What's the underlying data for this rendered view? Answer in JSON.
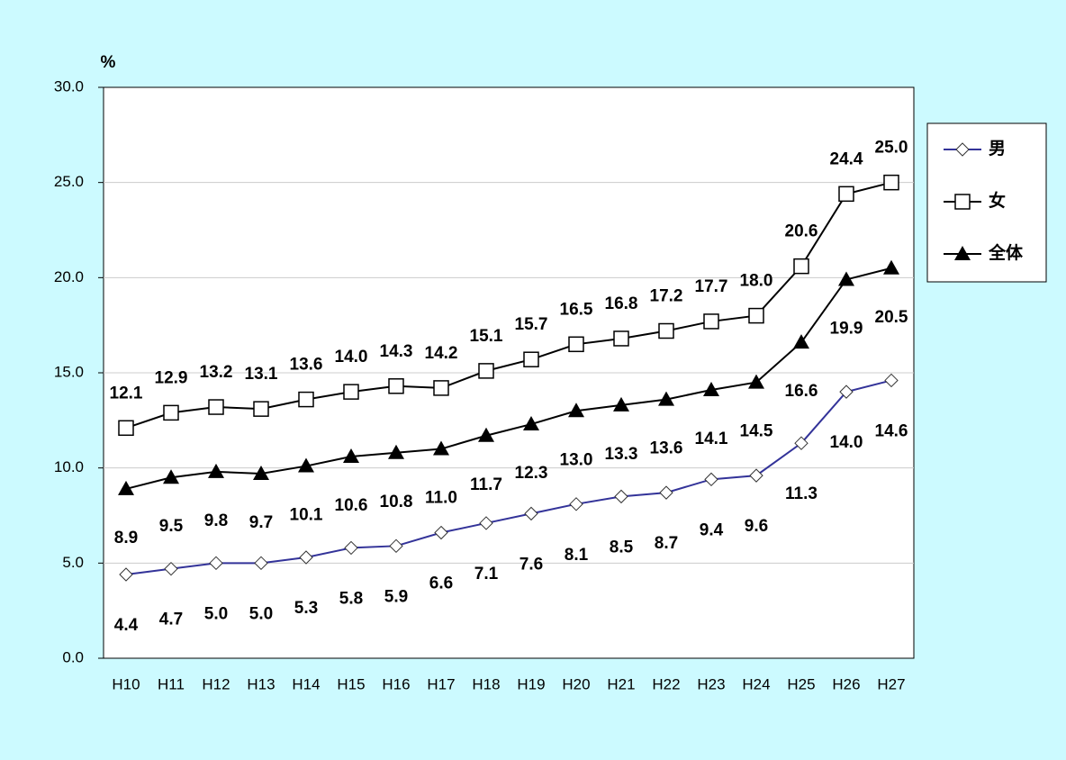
{
  "chart_data": {
    "type": "line",
    "y_label": "%",
    "categories": [
      "H10",
      "H11",
      "H12",
      "H13",
      "H14",
      "H15",
      "H16",
      "H17",
      "H18",
      "H19",
      "H20",
      "H21",
      "H22",
      "H23",
      "H24",
      "H25",
      "H26",
      "H27"
    ],
    "series": [
      {
        "name": "男",
        "color": "#333399",
        "marker": "diamond",
        "values": [
          4.4,
          4.7,
          5.0,
          5.0,
          5.3,
          5.8,
          5.9,
          6.6,
          7.1,
          7.6,
          8.1,
          8.5,
          8.7,
          9.4,
          9.6,
          11.3,
          14.0,
          14.6
        ],
        "value_labels": [
          "4.4",
          "4.7",
          "5.0",
          "5.0",
          "5.3",
          "5.8",
          "5.9",
          "6.6",
          "7.1",
          "7.6",
          "8.1",
          "8.5",
          "8.7",
          "9.4",
          "9.6",
          "11.3",
          "14.0",
          "14.6"
        ]
      },
      {
        "name": "女",
        "color": "#000000",
        "marker": "square",
        "values": [
          12.1,
          12.9,
          13.2,
          13.1,
          13.6,
          14.0,
          14.3,
          14.2,
          15.1,
          15.7,
          16.5,
          16.8,
          17.2,
          17.7,
          18.0,
          20.6,
          24.4,
          25.0
        ],
        "value_labels": [
          "12.1",
          "12.9",
          "13.2",
          "13.1",
          "13.6",
          "14.0",
          "14.3",
          "14.2",
          "15.1",
          "15.7",
          "16.5",
          "16.8",
          "17.2",
          "17.7",
          "18.0",
          "20.6",
          "24.4",
          "25.0"
        ]
      },
      {
        "name": "全体",
        "color": "#000000",
        "marker": "triangle",
        "values": [
          8.9,
          9.5,
          9.8,
          9.7,
          10.1,
          10.6,
          10.8,
          11.0,
          11.7,
          12.3,
          13.0,
          13.3,
          13.6,
          14.1,
          14.5,
          16.6,
          19.9,
          20.5
        ],
        "value_labels": [
          "8.9",
          "9.5",
          "9.8",
          "9.7",
          "10.1",
          "10.6",
          "10.8",
          "11.0",
          "11.7",
          "12.3",
          "13.0",
          "13.3",
          "13.6",
          "14.1",
          "14.5",
          "16.6",
          "19.9",
          "20.5"
        ]
      }
    ],
    "ylim": [
      0,
      30
    ],
    "yticks": [
      {
        "value": 0,
        "label": "0.0"
      },
      {
        "value": 5,
        "label": "5.0"
      },
      {
        "value": 10,
        "label": "10.0"
      },
      {
        "value": 15,
        "label": "15.0"
      },
      {
        "value": 20,
        "label": "20.0"
      },
      {
        "value": 25,
        "label": "25.0"
      },
      {
        "value": 30,
        "label": "30.0"
      }
    ],
    "grid": true,
    "legend": "right"
  }
}
